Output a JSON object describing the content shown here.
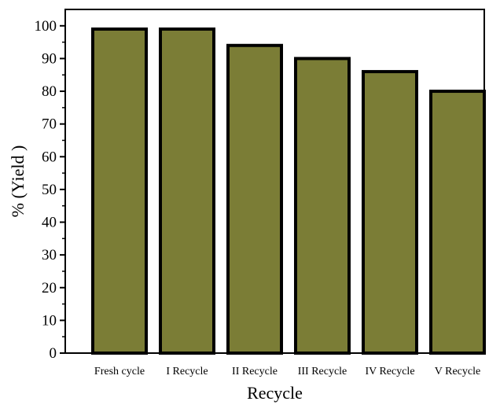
{
  "chart_data": {
    "type": "bar",
    "title": "",
    "xlabel": "Recycle",
    "ylabel": "% (Yield )",
    "categories": [
      "Fresh cycle",
      "I Recycle",
      "II Recycle",
      "III Recycle",
      "IV Recycle",
      "V Recycle"
    ],
    "values": [
      99,
      99,
      94,
      90,
      86,
      80
    ],
    "ylim": [
      0,
      105
    ],
    "yticks": [
      0,
      10,
      20,
      30,
      40,
      50,
      60,
      70,
      80,
      90,
      100
    ],
    "grid": false,
    "legend": "none",
    "colors": {
      "bar_fill": "#7b7d36",
      "bar_stroke": "#000000",
      "axis": "#000000"
    }
  }
}
